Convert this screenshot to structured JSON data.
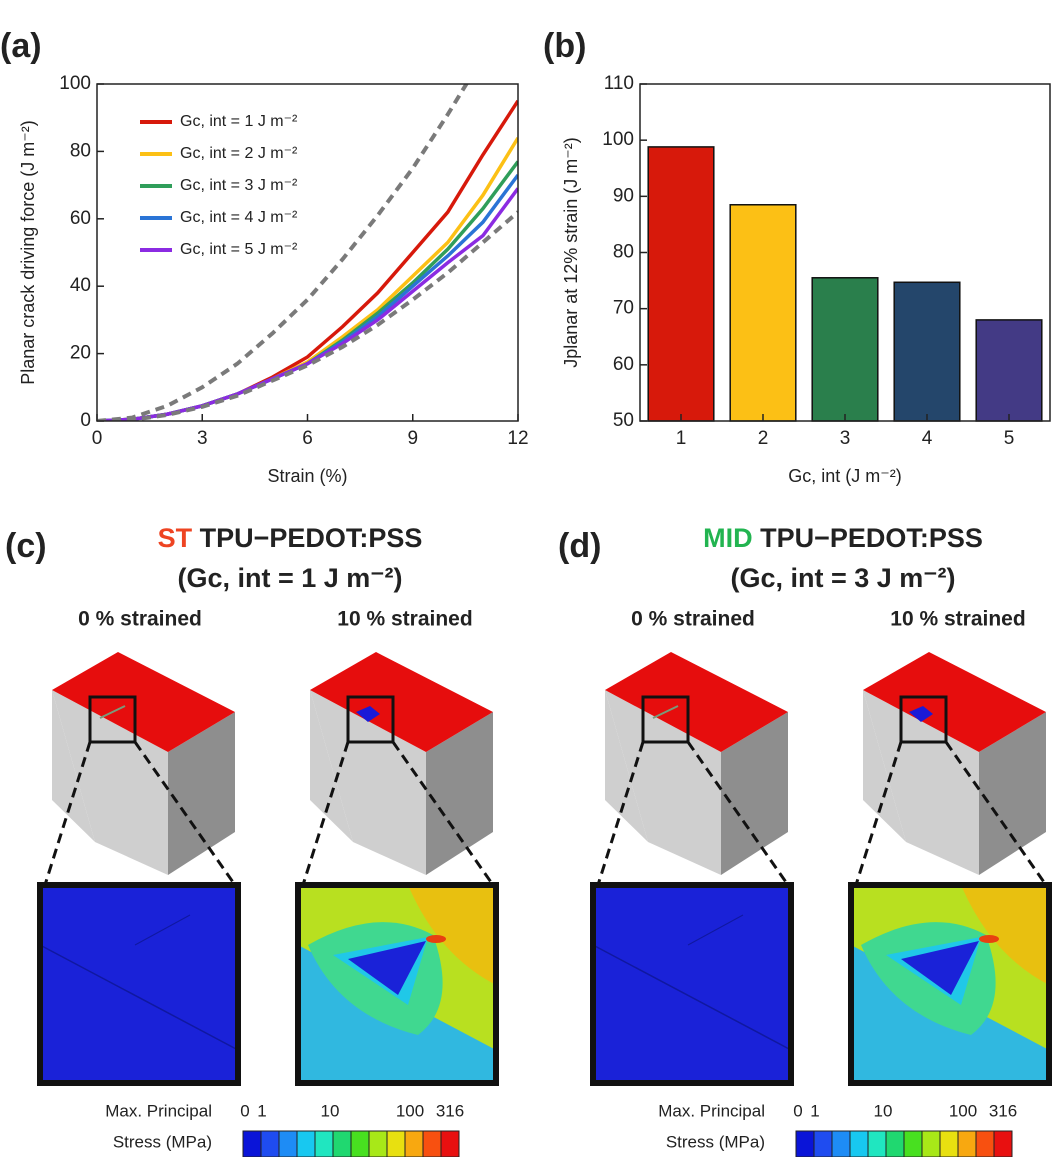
{
  "chart_data": [
    {
      "type": "line",
      "panel": "(a)",
      "xlabel": "Strain (%)",
      "ylabel": "Planar crack driving force (J m⁻²)",
      "x": [
        0,
        1,
        2,
        3,
        4,
        5,
        6,
        7,
        8,
        9,
        10,
        11,
        12
      ],
      "xlim": [
        0,
        12
      ],
      "xticks": [
        0,
        3,
        6,
        9,
        12
      ],
      "ylim": [
        0,
        100
      ],
      "yticks": [
        0,
        20,
        40,
        60,
        80,
        100
      ],
      "series": [
        {
          "name": "Gc, int = 1 J m⁻²",
          "color": "#d7190b",
          "values": [
            0,
            0.5,
            2,
            4.5,
            8,
            13,
            19,
            28,
            38,
            50,
            62,
            79,
            95
          ]
        },
        {
          "name": "Gc, int = 2 J m⁻²",
          "color": "#fcc015",
          "values": [
            0,
            0.5,
            2,
            4.5,
            8,
            12.5,
            17.5,
            25,
            33,
            43,
            53,
            67,
            84
          ]
        },
        {
          "name": "Gc, int = 3 J m⁻²",
          "color": "#2f9e5a",
          "values": [
            0,
            0.5,
            2,
            4.5,
            8,
            12.5,
            17,
            24,
            32,
            41,
            51,
            63,
            77
          ]
        },
        {
          "name": "Gc, int = 4 J m⁻²",
          "color": "#2a74d6",
          "values": [
            0,
            0.5,
            2,
            4.5,
            8,
            12.5,
            17,
            23.5,
            31,
            40,
            49,
            59,
            73
          ]
        },
        {
          "name": "Gc, int = 5 J m⁻²",
          "color": "#8b2be2",
          "values": [
            0,
            0.5,
            2,
            4.5,
            8,
            12.5,
            17,
            23,
            30,
            38.5,
            47,
            55,
            69
          ]
        },
        {
          "color": "#7a7a7a",
          "dash": true,
          "values": [
            0,
            1,
            4.5,
            10,
            17,
            26,
            36,
            48,
            61,
            75,
            91,
            108,
            127
          ]
        },
        {
          "color": "#7a7a7a",
          "dash": true,
          "values": [
            0,
            0.3,
            1.8,
            4.2,
            7.5,
            12,
            16.5,
            22,
            28.5,
            36,
            44,
            53,
            62
          ]
        }
      ]
    },
    {
      "type": "bar",
      "panel": "(b)",
      "xlabel": "Gc, int (J m⁻²)",
      "ylabel": "Jplanar at 12% strain (J m⁻²)",
      "categories": [
        "1",
        "2",
        "3",
        "4",
        "5"
      ],
      "values": [
        98.8,
        88.5,
        75.5,
        74.7,
        68
      ],
      "colors": [
        "#d7190b",
        "#fcc015",
        "#2a7f4c",
        "#24466b",
        "#433a85"
      ],
      "ylim": [
        50,
        110
      ],
      "yticks": [
        50,
        60,
        70,
        80,
        90,
        100,
        110
      ]
    }
  ],
  "panels": [
    {
      "label": "(c)",
      "title_mark": "ST",
      "mark_color": "#ee4422",
      "title_rest": " TPU−PEDOT:PSS",
      "subtitle": "(Gc, int = 1 J m⁻²)",
      "left": "0 % strained",
      "right": "10 % strained",
      "colorbar_title": [
        "Max. Principal",
        "Stress (MPa)"
      ],
      "colorbar_ticks": [
        "0",
        "1",
        "10",
        "100",
        "316"
      ]
    },
    {
      "label": "(d)",
      "title_mark": "MID",
      "mark_color": "#22b450",
      "title_rest": " TPU−PEDOT:PSS",
      "subtitle": "(Gc, int = 3 J m⁻²)",
      "left": "0 % strained",
      "right": "10 % strained",
      "colorbar_title": [
        "Max. Principal",
        "Stress (MPa)"
      ],
      "colorbar_ticks": [
        "0",
        "1",
        "10",
        "100",
        "316"
      ]
    }
  ]
}
